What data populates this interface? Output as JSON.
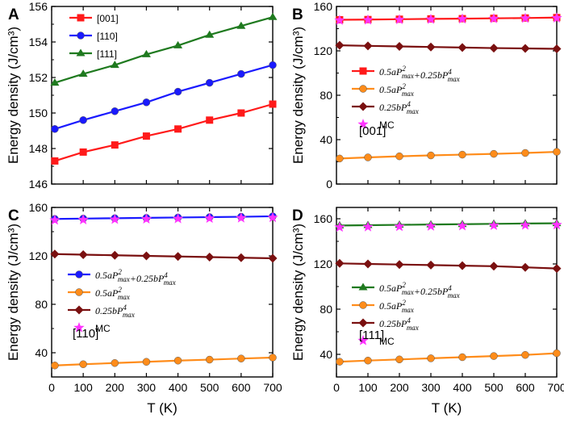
{
  "colors": {
    "red": "#ff1a1a",
    "blue": "#1a1aff",
    "green": "#1f7a1f",
    "orange": "#ff8c1a",
    "darkred": "#7a1010",
    "magenta": "#ff33ff"
  },
  "chart_data": [
    {
      "type": "line",
      "panel_label": "A",
      "xlabel": "",
      "ylabel": "Energy density (J/cm³)",
      "xlim": [
        0,
        700
      ],
      "ylim": [
        146,
        156
      ],
      "yticks": [
        146,
        148,
        150,
        152,
        154,
        156
      ],
      "xticks": [],
      "legend_position": "top-left",
      "annotation": "",
      "series": [
        {
          "name": "[001]",
          "color": "#ff1a1a",
          "marker": "square",
          "x": [
            10,
            100,
            200,
            300,
            400,
            500,
            600,
            700
          ],
          "y": [
            147.3,
            147.8,
            148.2,
            148.7,
            149.1,
            149.6,
            150.0,
            150.5
          ]
        },
        {
          "name": "[110]",
          "color": "#1a1aff",
          "marker": "circle",
          "x": [
            10,
            100,
            200,
            300,
            400,
            500,
            600,
            700
          ],
          "y": [
            149.1,
            149.6,
            150.1,
            150.6,
            151.2,
            151.7,
            152.2,
            152.7
          ]
        },
        {
          "name": "[111]",
          "color": "#1f7a1f",
          "marker": "triangle",
          "x": [
            10,
            100,
            200,
            300,
            400,
            500,
            600,
            700
          ],
          "y": [
            151.7,
            152.2,
            152.7,
            153.3,
            153.8,
            154.4,
            154.9,
            155.4
          ]
        }
      ]
    },
    {
      "type": "line",
      "panel_label": "B",
      "xlabel": "",
      "ylabel": "Energy density (J/cm³)",
      "xlim": [
        0,
        700
      ],
      "ylim": [
        0,
        160
      ],
      "yticks": [
        0,
        40,
        80,
        120,
        160
      ],
      "xticks": [],
      "legend_position": "middle-right",
      "annotation": "[001]",
      "series": [
        {
          "name": "0.5aP²max+0.25bP⁴max",
          "color": "#ff1a1a",
          "marker": "square",
          "x": [
            10,
            100,
            200,
            300,
            400,
            500,
            600,
            700
          ],
          "y": [
            148,
            148.2,
            148.5,
            148.8,
            149,
            149.3,
            149.6,
            150
          ]
        },
        {
          "name": "0.5aP²max",
          "color": "#ff8c1a",
          "marker": "circle",
          "x": [
            10,
            100,
            200,
            300,
            400,
            500,
            600,
            700
          ],
          "y": [
            23,
            24,
            25,
            25.8,
            26.5,
            27.2,
            28,
            29
          ]
        },
        {
          "name": "0.25bP⁴max",
          "color": "#7a1010",
          "marker": "diamond",
          "x": [
            10,
            100,
            200,
            300,
            400,
            500,
            600,
            700
          ],
          "y": [
            125,
            124.5,
            124,
            123.5,
            123,
            122.5,
            122.2,
            121.8
          ]
        },
        {
          "name": "MC",
          "color": "#ff33ff",
          "marker": "star",
          "x": [
            10,
            100,
            200,
            300,
            400,
            500,
            600,
            700
          ],
          "y": [
            147.5,
            147.8,
            148.1,
            148.4,
            148.7,
            149,
            149.3,
            149.6
          ]
        }
      ]
    },
    {
      "type": "line",
      "panel_label": "C",
      "xlabel": "T (K)",
      "ylabel": "Energy density (J/cm³)",
      "xlim": [
        0,
        700
      ],
      "ylim": [
        20,
        160
      ],
      "yticks": [
        40,
        80,
        120,
        160
      ],
      "xticks": [
        0,
        100,
        200,
        300,
        400,
        500,
        600,
        700
      ],
      "legend_position": "middle-right",
      "annotation": "[110]",
      "series": [
        {
          "name": "0.5aP²max+0.25bP⁴max",
          "color": "#1a1aff",
          "marker": "circle",
          "x": [
            10,
            100,
            200,
            300,
            400,
            500,
            600,
            700
          ],
          "y": [
            150.5,
            150.8,
            151.1,
            151.4,
            151.7,
            152,
            152.3,
            152.7
          ]
        },
        {
          "name": "0.5aP²max",
          "color": "#ff8c1a",
          "marker": "circle",
          "x": [
            10,
            100,
            200,
            300,
            400,
            500,
            600,
            700
          ],
          "y": [
            29.5,
            30.5,
            31.5,
            32.5,
            33.5,
            34.3,
            35.2,
            36
          ]
        },
        {
          "name": "0.25bP⁴max",
          "color": "#7a1010",
          "marker": "diamond",
          "x": [
            10,
            100,
            200,
            300,
            400,
            500,
            600,
            700
          ],
          "y": [
            121.5,
            121,
            120.5,
            120,
            119.5,
            119,
            118.5,
            118
          ]
        },
        {
          "name": "MC",
          "color": "#ff33ff",
          "marker": "star",
          "x": [
            10,
            100,
            200,
            300,
            400,
            500,
            600,
            700
          ],
          "y": [
            149.5,
            149.8,
            150.1,
            150.4,
            150.7,
            151,
            151.3,
            151.6
          ]
        }
      ]
    },
    {
      "type": "line",
      "panel_label": "D",
      "xlabel": "T (K)",
      "ylabel": "Energy density (J/cm³)",
      "xlim": [
        0,
        700
      ],
      "ylim": [
        20,
        170
      ],
      "yticks": [
        40,
        80,
        120,
        160
      ],
      "xticks": [
        0,
        100,
        200,
        300,
        400,
        500,
        600,
        700
      ],
      "legend_position": "middle-right",
      "annotation": "[111]",
      "series": [
        {
          "name": "0.5aP²max+0.25bP⁴max",
          "color": "#1f7a1f",
          "marker": "triangle",
          "x": [
            10,
            100,
            200,
            300,
            400,
            500,
            600,
            700
          ],
          "y": [
            154,
            154.3,
            154.6,
            154.9,
            155.2,
            155.5,
            155.8,
            156
          ]
        },
        {
          "name": "0.5aP²max",
          "color": "#ff8c1a",
          "marker": "circle",
          "x": [
            10,
            100,
            200,
            300,
            400,
            500,
            600,
            700
          ],
          "y": [
            33.5,
            34.5,
            35.5,
            36.5,
            37.5,
            38.5,
            39.5,
            41
          ]
        },
        {
          "name": "0.25bP⁴max",
          "color": "#7a1010",
          "marker": "diamond",
          "x": [
            10,
            100,
            200,
            300,
            400,
            500,
            600,
            700
          ],
          "y": [
            120.5,
            120,
            119.5,
            119,
            118.5,
            118,
            117,
            116
          ]
        },
        {
          "name": "MC",
          "color": "#ff33ff",
          "marker": "star",
          "x": [
            10,
            100,
            200,
            300,
            400,
            500,
            600,
            700
          ],
          "y": [
            152.5,
            152.8,
            153.1,
            153.4,
            153.7,
            154,
            154.3,
            154.6
          ]
        }
      ]
    }
  ]
}
